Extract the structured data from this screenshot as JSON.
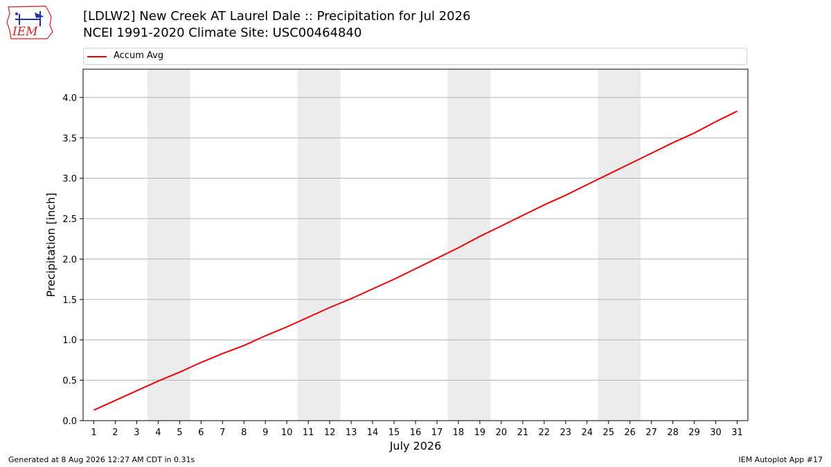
{
  "title_line1": "[LDLW2] New Creek  AT Laurel Dale :: Precipitation for Jul 2026",
  "title_line2": "NCEI 1991-2020 Climate Site: USC00464840",
  "logo_text": "IEM",
  "footer_left": "Generated at 8 Aug 2026 12:27 AM CDT in 0.31s",
  "footer_right": "IEM Autoplot App #17",
  "colors": {
    "line": "#ee0000",
    "weekend_band": "#ececec",
    "grid": "#b0b0b0",
    "logo_blue": "#2233aa",
    "logo_red": "#cc2222"
  },
  "chart_data": {
    "type": "line",
    "xlabel": "July 2026",
    "ylabel": "Precipitation [inch]",
    "x": [
      1,
      2,
      3,
      4,
      5,
      6,
      7,
      8,
      9,
      10,
      11,
      12,
      13,
      14,
      15,
      16,
      17,
      18,
      19,
      20,
      21,
      22,
      23,
      24,
      25,
      26,
      27,
      28,
      29,
      30,
      31
    ],
    "xlim": [
      0.5,
      31.5
    ],
    "ylim": [
      0,
      4.35
    ],
    "yticks": [
      "0.0",
      "0.5",
      "1.0",
      "1.5",
      "2.0",
      "2.5",
      "3.0",
      "3.5",
      "4.0"
    ],
    "ytick_values": [
      0,
      0.5,
      1,
      1.5,
      2,
      2.5,
      3,
      3.5,
      4
    ],
    "grid": "y",
    "legend_placement": "top",
    "weekend_bands": [
      [
        3.5,
        5.5
      ],
      [
        10.5,
        12.5
      ],
      [
        17.5,
        19.5
      ],
      [
        24.5,
        26.5
      ]
    ],
    "series": [
      {
        "name": "Accum Avg",
        "values": [
          0.13,
          0.25,
          0.37,
          0.49,
          0.6,
          0.72,
          0.83,
          0.93,
          1.05,
          1.16,
          1.28,
          1.4,
          1.51,
          1.63,
          1.75,
          1.88,
          2.01,
          2.14,
          2.28,
          2.41,
          2.54,
          2.67,
          2.79,
          2.92,
          3.05,
          3.18,
          3.31,
          3.44,
          3.56,
          3.7,
          3.83
        ]
      }
    ]
  }
}
